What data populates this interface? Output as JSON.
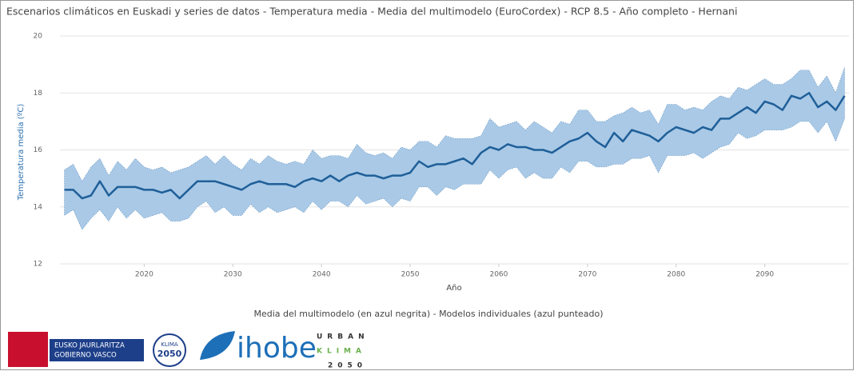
{
  "chart_data": {
    "type": "line",
    "title": "Escenarios climáticos en Euskadi y series de datos - Temperatura media - Media del multimodelo (EuroCordex) - RCP 8.5 - Año completo - Hernani",
    "x_label": "Año",
    "y_label": "Temperatura media (ºC)",
    "caption": "Media del multimodelo (en azul negrita) - Modelos individuales (azul punteado)",
    "x": [
      2011,
      2012,
      2013,
      2014,
      2015,
      2016,
      2017,
      2018,
      2019,
      2020,
      2021,
      2022,
      2023,
      2024,
      2025,
      2026,
      2027,
      2028,
      2029,
      2030,
      2031,
      2032,
      2033,
      2034,
      2035,
      2036,
      2037,
      2038,
      2039,
      2040,
      2041,
      2042,
      2043,
      2044,
      2045,
      2046,
      2047,
      2048,
      2049,
      2050,
      2051,
      2052,
      2053,
      2054,
      2055,
      2056,
      2057,
      2058,
      2059,
      2060,
      2061,
      2062,
      2063,
      2064,
      2065,
      2066,
      2067,
      2068,
      2069,
      2070,
      2071,
      2072,
      2073,
      2074,
      2075,
      2076,
      2077,
      2078,
      2079,
      2080,
      2081,
      2082,
      2083,
      2084,
      2085,
      2086,
      2087,
      2088,
      2089,
      2090,
      2091,
      2092,
      2093,
      2094,
      2095,
      2096,
      2097,
      2098,
      2099
    ],
    "series": [
      {
        "color": "#1f5f99",
        "values": [
          14.6,
          14.6,
          14.3,
          14.4,
          14.9,
          14.4,
          14.7,
          14.7,
          14.7,
          14.6,
          14.6,
          14.5,
          14.6,
          14.3,
          14.6,
          14.9,
          14.9,
          14.9,
          14.8,
          14.7,
          14.6,
          14.8,
          14.9,
          14.8,
          14.8,
          14.8,
          14.7,
          14.9,
          15.0,
          14.9,
          15.1,
          14.9,
          15.1,
          15.2,
          15.1,
          15.1,
          15.0,
          15.1,
          15.1,
          15.2,
          15.6,
          15.4,
          15.5,
          15.5,
          15.6,
          15.7,
          15.5,
          15.9,
          16.1,
          16.0,
          16.2,
          16.1,
          16.1,
          16.0,
          16.0,
          15.9,
          16.1,
          16.3,
          16.4,
          16.6,
          16.3,
          16.1,
          16.6,
          16.3,
          16.7,
          16.6,
          16.5,
          16.3,
          16.6,
          16.8,
          16.7,
          16.6,
          16.8,
          16.7,
          17.1,
          17.1,
          17.3,
          17.5,
          17.3,
          17.7,
          17.6,
          17.4,
          17.9,
          17.8,
          18.0,
          17.5,
          17.7,
          17.4,
          17.9
        ]
      }
    ],
    "band": {
      "color": "#a9c9e6",
      "upper": [
        15.3,
        15.5,
        14.9,
        15.4,
        15.7,
        15.1,
        15.6,
        15.3,
        15.7,
        15.4,
        15.3,
        15.4,
        15.2,
        15.3,
        15.4,
        15.6,
        15.8,
        15.5,
        15.8,
        15.5,
        15.3,
        15.7,
        15.5,
        15.8,
        15.6,
        15.5,
        15.6,
        15.5,
        16.0,
        15.7,
        15.8,
        15.8,
        15.7,
        16.2,
        15.9,
        15.8,
        15.9,
        15.7,
        16.1,
        16.0,
        16.3,
        16.3,
        16.1,
        16.5,
        16.4,
        16.4,
        16.4,
        16.5,
        17.1,
        16.8,
        16.9,
        17.0,
        16.7,
        17.0,
        16.8,
        16.6,
        17.0,
        16.9,
        17.4,
        17.4,
        17.0,
        17.0,
        17.2,
        17.3,
        17.5,
        17.3,
        17.4,
        16.9,
        17.6,
        17.6,
        17.4,
        17.5,
        17.4,
        17.7,
        17.9,
        17.8,
        18.2,
        18.1,
        18.3,
        18.5,
        18.3,
        18.3,
        18.5,
        18.8,
        18.8,
        18.2,
        18.6,
        18.0,
        18.9
      ],
      "lower": [
        13.7,
        13.9,
        13.2,
        13.6,
        13.9,
        13.5,
        14.0,
        13.6,
        13.9,
        13.6,
        13.7,
        13.8,
        13.5,
        13.5,
        13.6,
        14.0,
        14.2,
        13.8,
        14.0,
        13.7,
        13.7,
        14.1,
        13.8,
        14.0,
        13.8,
        13.9,
        14.0,
        13.8,
        14.2,
        13.9,
        14.2,
        14.2,
        14.0,
        14.4,
        14.1,
        14.2,
        14.3,
        14.0,
        14.3,
        14.2,
        14.7,
        14.7,
        14.4,
        14.7,
        14.6,
        14.8,
        14.8,
        14.8,
        15.3,
        15.0,
        15.3,
        15.4,
        15.0,
        15.2,
        15.0,
        15.0,
        15.4,
        15.2,
        15.6,
        15.6,
        15.4,
        15.4,
        15.5,
        15.5,
        15.7,
        15.7,
        15.8,
        15.2,
        15.8,
        15.8,
        15.8,
        15.9,
        15.7,
        15.9,
        16.1,
        16.2,
        16.6,
        16.4,
        16.5,
        16.7,
        16.7,
        16.7,
        16.8,
        17.0,
        17.0,
        16.6,
        17.0,
        16.3,
        17.1
      ]
    },
    "xlim": [
      2010.5,
      2099.5
    ],
    "xticks": [
      2020,
      2030,
      2040,
      2050,
      2060,
      2070,
      2080,
      2090
    ],
    "ylim": [
      12,
      20
    ],
    "yticks": [
      12,
      14,
      16,
      18,
      20
    ],
    "grid": true
  },
  "logos": {
    "eusko": "EUSKO JAURLARITZA",
    "gobierno": "GOBIERNO VASCO",
    "klima_top": "KLIMA",
    "klima_bottom": "2050",
    "ihobe": "ihobe",
    "urban": "URBAN",
    "klima": "KLIMA",
    "year": "2050"
  }
}
